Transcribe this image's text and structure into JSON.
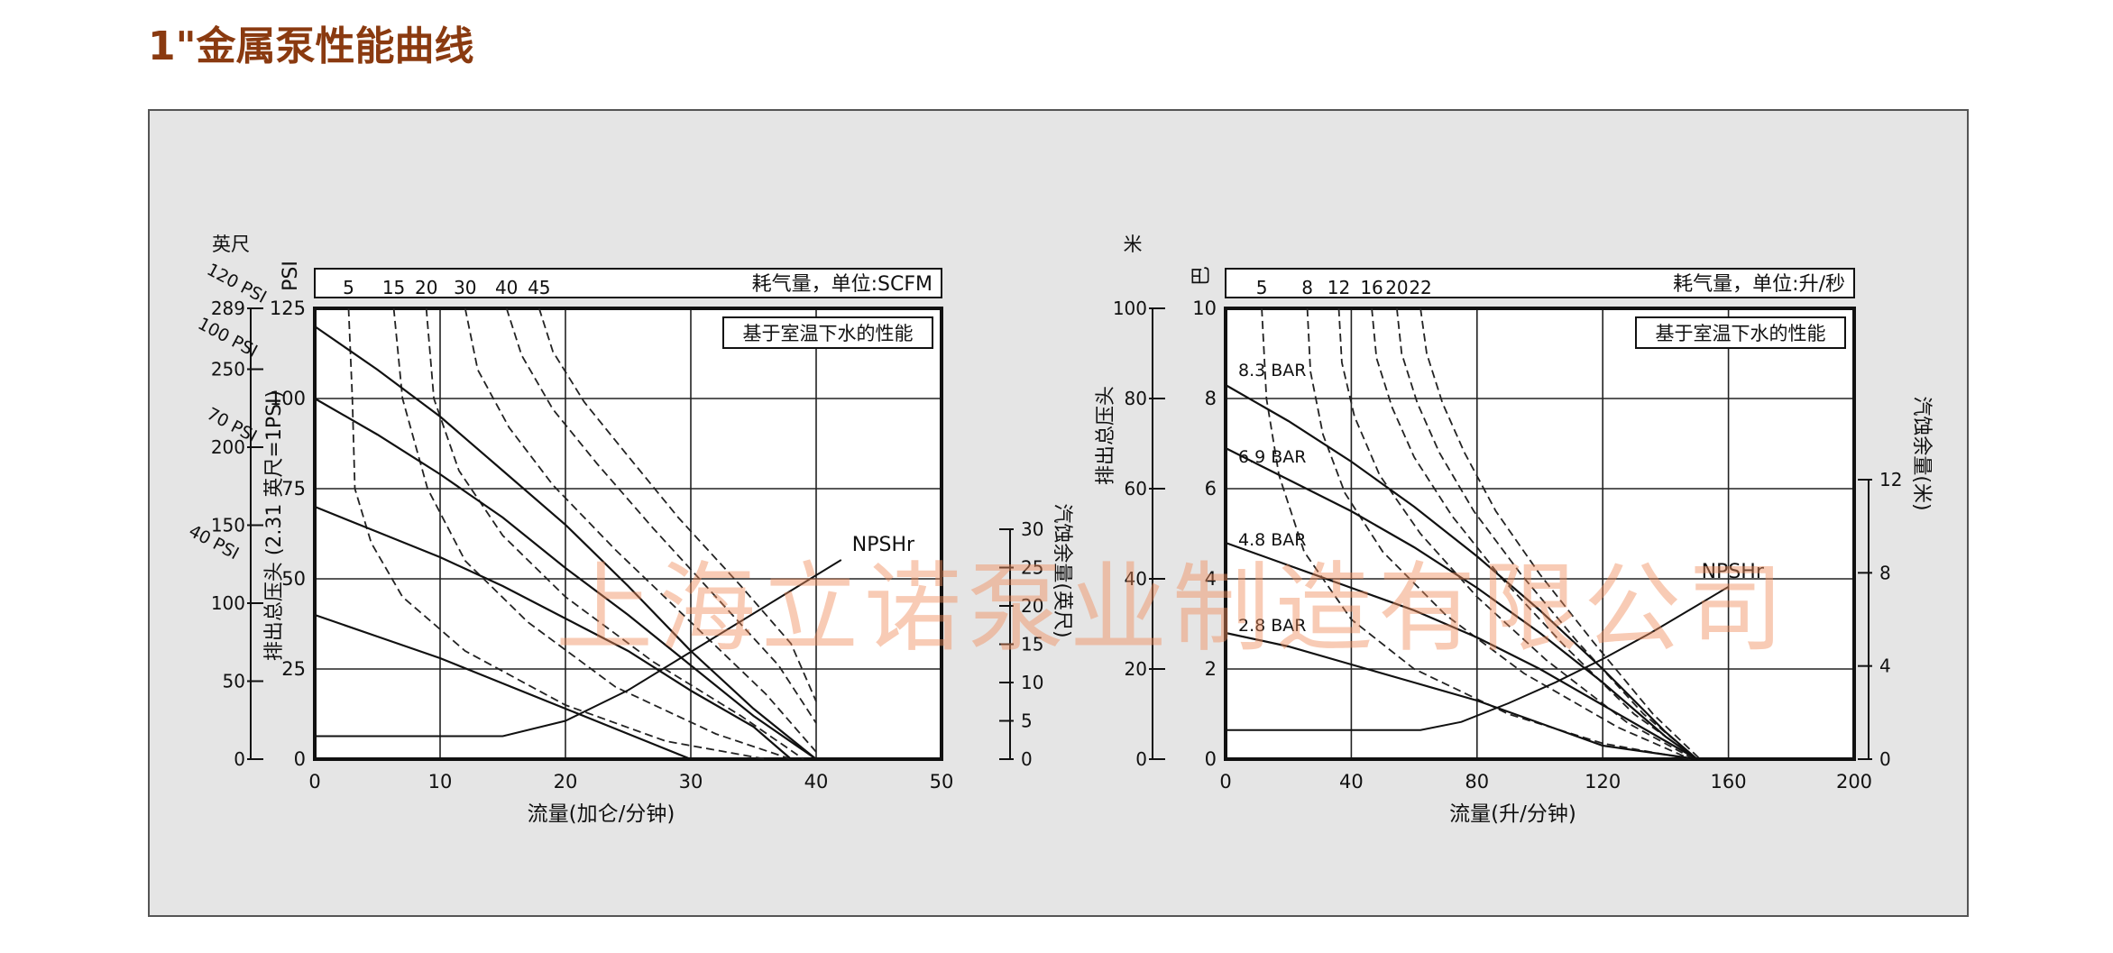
{
  "page": {
    "title": "1\"金属泵性能曲线"
  },
  "watermark": "上海立诺泵业制造有限公司",
  "chart_data": [
    {
      "type": "line",
      "xlabel": "流量(加仑/分钟)",
      "xlim": [
        0,
        50
      ],
      "xticks": [
        0,
        10,
        20,
        30,
        40,
        50
      ],
      "ylabel_left": "PSI",
      "ylim": [
        0,
        125
      ],
      "yticks": [
        0,
        25,
        50,
        75,
        100,
        125
      ],
      "ylabel_left2": "排出总压头 (2.31 英尺=1PSI)",
      "ylabel_left2_unit": "英尺",
      "yticks_left2": [
        0,
        50,
        100,
        150,
        200,
        250,
        289
      ],
      "ylabel_right": "汽蚀余量(英尺)",
      "yticks_right": [
        0,
        5,
        10,
        15,
        20,
        25,
        30
      ],
      "top_axis_label": "耗气量，单位:SCFM",
      "top_ticks": [
        {
          "label": "5",
          "at": 2.7
        },
        {
          "label": "15",
          "at": 6.3
        },
        {
          "label": "20",
          "at": 8.9
        },
        {
          "label": "30",
          "at": 12.0
        },
        {
          "label": "40",
          "at": 15.3
        },
        {
          "label": "45",
          "at": 17.9
        }
      ],
      "annotation": "基于室温下水的性能",
      "pressure_curves": [
        {
          "label": "120 PSI",
          "points": [
            [
              0,
              120
            ],
            [
              5,
              108
            ],
            [
              10,
              95
            ],
            [
              15,
              80
            ],
            [
              20,
              65
            ],
            [
              25,
              48
            ],
            [
              30,
              30
            ],
            [
              35,
              14
            ],
            [
              40,
              0
            ]
          ]
        },
        {
          "label": "100 PSI",
          "points": [
            [
              0,
              100
            ],
            [
              5,
              90
            ],
            [
              10,
              79
            ],
            [
              15,
              67
            ],
            [
              20,
              53
            ],
            [
              25,
              40
            ],
            [
              30,
              26
            ],
            [
              35,
              12
            ],
            [
              40,
              0
            ]
          ]
        },
        {
          "label": "70 PSI",
          "points": [
            [
              0,
              70
            ],
            [
              5,
              63
            ],
            [
              10,
              56
            ],
            [
              15,
              48
            ],
            [
              20,
              39
            ],
            [
              25,
              30
            ],
            [
              30,
              19
            ],
            [
              35,
              9
            ],
            [
              38,
              0
            ]
          ]
        },
        {
          "label": "40 PSI",
          "points": [
            [
              0,
              40
            ],
            [
              5,
              34
            ],
            [
              10,
              28
            ],
            [
              15,
              21
            ],
            [
              20,
              14
            ],
            [
              25,
              7
            ],
            [
              30,
              0
            ]
          ]
        }
      ],
      "air_curves": [
        {
          "label": "5",
          "points": [
            [
              2.7,
              125
            ],
            [
              3.0,
              100
            ],
            [
              3.2,
              75
            ],
            [
              4.5,
              60
            ],
            [
              7,
              45
            ],
            [
              12,
              30
            ],
            [
              20,
              15
            ],
            [
              28,
              5
            ],
            [
              36,
              0
            ]
          ]
        },
        {
          "label": "15",
          "points": [
            [
              6.3,
              125
            ],
            [
              7,
              100
            ],
            [
              9,
              75
            ],
            [
              12,
              55
            ],
            [
              17,
              38
            ],
            [
              24,
              20
            ],
            [
              32,
              7
            ],
            [
              38,
              0
            ]
          ]
        },
        {
          "label": "20",
          "points": [
            [
              8.9,
              125
            ],
            [
              9.5,
              100
            ],
            [
              11.5,
              80
            ],
            [
              15,
              62
            ],
            [
              20,
              45
            ],
            [
              27,
              27
            ],
            [
              34,
              12
            ],
            [
              39,
              0
            ]
          ]
        },
        {
          "label": "30",
          "points": [
            [
              12,
              125
            ],
            [
              13,
              108
            ],
            [
              15.5,
              92
            ],
            [
              19,
              76
            ],
            [
              24,
              58
            ],
            [
              30,
              38
            ],
            [
              36,
              18
            ],
            [
              40,
              2
            ]
          ]
        },
        {
          "label": "40",
          "points": [
            [
              15.3,
              125
            ],
            [
              16.5,
              112
            ],
            [
              19,
              97
            ],
            [
              22.5,
              82
            ],
            [
              27,
              64
            ],
            [
              32,
              45
            ],
            [
              37,
              26
            ],
            [
              40,
              10
            ]
          ]
        },
        {
          "label": "45",
          "points": [
            [
              17.9,
              125
            ],
            [
              19,
              113
            ],
            [
              21.5,
              99
            ],
            [
              25,
              84
            ],
            [
              29,
              67
            ],
            [
              34,
              48
            ],
            [
              38,
              32
            ],
            [
              40,
              16
            ]
          ]
        }
      ],
      "npshr": {
        "label": "NPSHr",
        "points": [
          [
            0,
            3
          ],
          [
            15,
            3
          ],
          [
            20,
            5
          ],
          [
            25,
            9
          ],
          [
            30,
            14
          ],
          [
            35,
            19
          ],
          [
            40,
            24
          ],
          [
            42,
            26
          ]
        ]
      }
    },
    {
      "type": "line",
      "xlabel": "流量(升/分钟)",
      "xlim": [
        0,
        200
      ],
      "xticks": [
        0,
        40,
        80,
        120,
        160,
        200
      ],
      "ylabel_left": "巴",
      "ylim": [
        0,
        10
      ],
      "yticks": [
        0,
        2,
        4,
        6,
        8,
        10
      ],
      "ylabel_left2": "排出总压头",
      "ylabel_left2_unit": "米",
      "yticks_left2": [
        0,
        20,
        40,
        60,
        80,
        100
      ],
      "ylabel_right": "汽蚀余量(米)",
      "yticks_right": [
        0,
        4,
        8,
        12
      ],
      "top_axis_label": "耗气量，单位:升/秒",
      "top_ticks": [
        {
          "label": "5",
          "at": 11.5
        },
        {
          "label": "8",
          "at": 26
        },
        {
          "label": "12",
          "at": 36
        },
        {
          "label": "16",
          "at": 46.5
        },
        {
          "label": "20",
          "at": 54.5
        },
        {
          "label": "22",
          "at": 62
        }
      ],
      "annotation": "基于室温下水的性能",
      "pressure_curves": [
        {
          "label": "8.3 BAR",
          "points": [
            [
              0,
              8.3
            ],
            [
              20,
              7.5
            ],
            [
              40,
              6.6
            ],
            [
              60,
              5.6
            ],
            [
              80,
              4.5
            ],
            [
              100,
              3.3
            ],
            [
              120,
              2.0
            ],
            [
              140,
              0.6
            ],
            [
              150,
              0
            ]
          ]
        },
        {
          "label": "6.9 BAR",
          "points": [
            [
              0,
              6.9
            ],
            [
              20,
              6.2
            ],
            [
              40,
              5.5
            ],
            [
              60,
              4.7
            ],
            [
              80,
              3.8
            ],
            [
              100,
              2.8
            ],
            [
              120,
              1.7
            ],
            [
              140,
              0.5
            ],
            [
              150,
              0
            ]
          ]
        },
        {
          "label": "4.8 BAR",
          "points": [
            [
              0,
              4.8
            ],
            [
              20,
              4.3
            ],
            [
              40,
              3.8
            ],
            [
              60,
              3.3
            ],
            [
              80,
              2.7
            ],
            [
              100,
              2.0
            ],
            [
              120,
              1.2
            ],
            [
              140,
              0.4
            ],
            [
              150,
              0
            ]
          ]
        },
        {
          "label": "2.8 BAR",
          "points": [
            [
              0,
              2.8
            ],
            [
              20,
              2.5
            ],
            [
              40,
              2.1
            ],
            [
              60,
              1.7
            ],
            [
              80,
              1.3
            ],
            [
              100,
              0.8
            ],
            [
              120,
              0.3
            ],
            [
              150,
              0
            ]
          ]
        }
      ],
      "air_curves": [
        {
          "label": "5",
          "points": [
            [
              11.5,
              10
            ],
            [
              13,
              8
            ],
            [
              17,
              6.3
            ],
            [
              25,
              4.6
            ],
            [
              40,
              3.1
            ],
            [
              60,
              2.0
            ],
            [
              90,
              1.0
            ],
            [
              120,
              0.35
            ],
            [
              148,
              0
            ]
          ]
        },
        {
          "label": "8",
          "points": [
            [
              26,
              10
            ],
            [
              27,
              8.6
            ],
            [
              31,
              7.2
            ],
            [
              38,
              5.9
            ],
            [
              50,
              4.6
            ],
            [
              70,
              3.2
            ],
            [
              95,
              1.9
            ],
            [
              125,
              0.7
            ],
            [
              148,
              0
            ]
          ]
        },
        {
          "label": "12",
          "points": [
            [
              36,
              10
            ],
            [
              37,
              8.8
            ],
            [
              41,
              7.6
            ],
            [
              49,
              6.3
            ],
            [
              62,
              5.0
            ],
            [
              80,
              3.6
            ],
            [
              102,
              2.2
            ],
            [
              128,
              0.8
            ],
            [
              149,
              0
            ]
          ]
        },
        {
          "label": "16",
          "points": [
            [
              46.5,
              10
            ],
            [
              48,
              8.9
            ],
            [
              53,
              7.8
            ],
            [
              60,
              6.7
            ],
            [
              72,
              5.4
            ],
            [
              88,
              4.0
            ],
            [
              108,
              2.5
            ],
            [
              130,
              1.0
            ],
            [
              150,
              0
            ]
          ]
        },
        {
          "label": "20",
          "points": [
            [
              54.5,
              10
            ],
            [
              56,
              9.0
            ],
            [
              61,
              7.9
            ],
            [
              68,
              6.8
            ],
            [
              79,
              5.5
            ],
            [
              94,
              4.1
            ],
            [
              112,
              2.6
            ],
            [
              133,
              1.0
            ],
            [
              150,
              0
            ]
          ]
        },
        {
          "label": "22",
          "points": [
            [
              62,
              10
            ],
            [
              64,
              9.0
            ],
            [
              69,
              7.9
            ],
            [
              76,
              6.8
            ],
            [
              86,
              5.5
            ],
            [
              100,
              4.1
            ],
            [
              117,
              2.6
            ],
            [
              136,
              1.0
            ],
            [
              151,
              0
            ]
          ]
        }
      ],
      "npshr": {
        "label": "NPSHr",
        "points": [
          [
            0,
            1.25
          ],
          [
            62,
            1.25
          ],
          [
            75,
            1.6
          ],
          [
            90,
            2.4
          ],
          [
            105,
            3.3
          ],
          [
            120,
            4.3
          ],
          [
            135,
            5.4
          ],
          [
            150,
            6.6
          ],
          [
            160,
            7.4
          ]
        ]
      }
    }
  ]
}
